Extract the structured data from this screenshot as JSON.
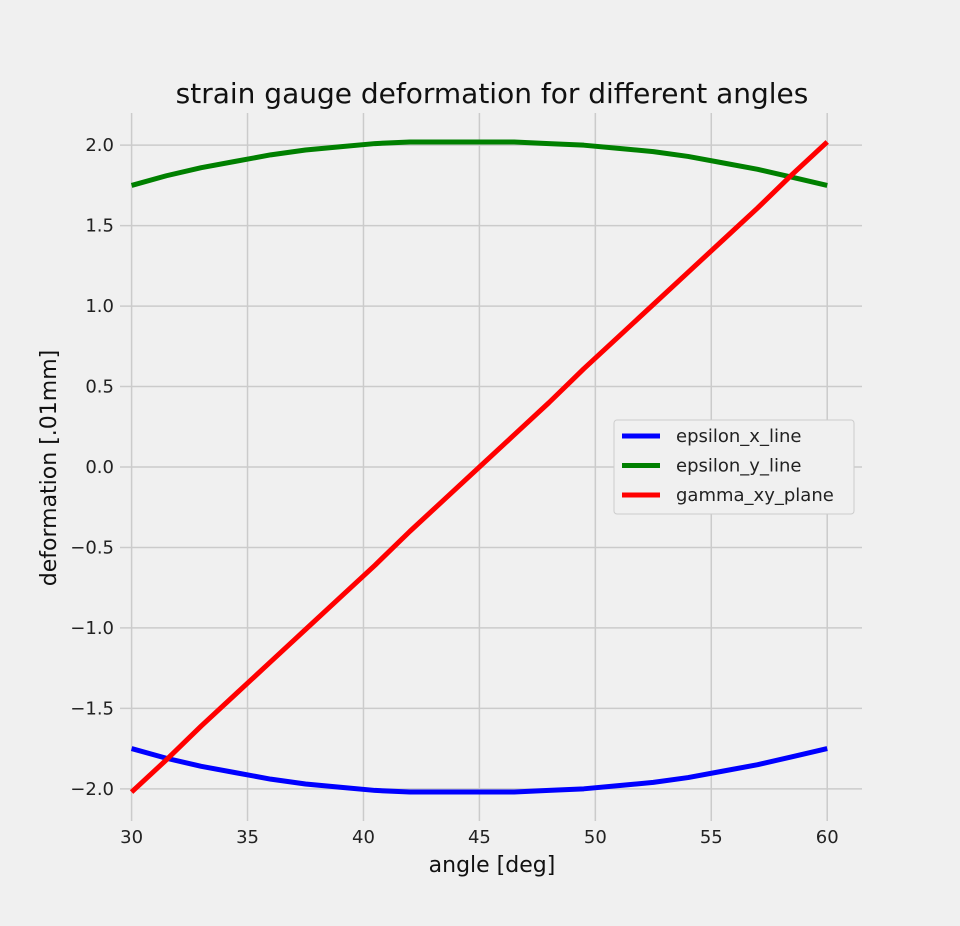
{
  "chart_data": {
    "type": "line",
    "title": "strain gauge deformation for different angles",
    "xlabel": "angle [deg]",
    "ylabel": "deformation [.01mm]",
    "xlim": [
      29.5,
      61.5
    ],
    "ylim": [
      -2.2,
      2.2
    ],
    "xticks": [
      30,
      35,
      40,
      45,
      50,
      55,
      60
    ],
    "xtick_labels": [
      "30",
      "35",
      "40",
      "45",
      "50",
      "55",
      "60"
    ],
    "yticks": [
      2.0,
      1.5,
      1.0,
      0.5,
      0.0,
      -0.5,
      -1.0,
      -1.5,
      -2.0
    ],
    "ytick_labels": [
      "2.0",
      "1.5",
      "1.0",
      "0.5",
      "0.0",
      "−0.5",
      "−1.0",
      "−1.5",
      "−2.0"
    ],
    "grid": true,
    "legend_position": "center-right",
    "x": [
      30,
      31.5,
      33,
      34.5,
      36,
      37.5,
      39,
      40.5,
      42,
      43.5,
      45,
      46.5,
      48,
      49.5,
      51,
      52.5,
      54,
      55.5,
      57,
      58.5,
      60
    ],
    "series": [
      {
        "name": "epsilon_x_line",
        "color": "#0000ff",
        "values": [
          -1.75,
          -1.81,
          -1.86,
          -1.9,
          -1.94,
          -1.97,
          -1.99,
          -2.01,
          -2.02,
          -2.02,
          -2.02,
          -2.02,
          -2.01,
          -2.0,
          -1.98,
          -1.96,
          -1.93,
          -1.89,
          -1.85,
          -1.8,
          -1.75
        ]
      },
      {
        "name": "epsilon_y_line",
        "color": "#008000",
        "values": [
          1.75,
          1.81,
          1.86,
          1.9,
          1.94,
          1.97,
          1.99,
          2.01,
          2.02,
          2.02,
          2.02,
          2.02,
          2.01,
          2.0,
          1.98,
          1.96,
          1.93,
          1.89,
          1.85,
          1.8,
          1.75
        ]
      },
      {
        "name": "gamma_xy_plane",
        "color": "#ff0000",
        "values": [
          -2.02,
          -1.82,
          -1.61,
          -1.41,
          -1.21,
          -1.01,
          -0.81,
          -0.61,
          -0.4,
          -0.2,
          0.0,
          0.2,
          0.4,
          0.61,
          0.81,
          1.01,
          1.21,
          1.41,
          1.61,
          1.82,
          2.02
        ]
      }
    ]
  }
}
